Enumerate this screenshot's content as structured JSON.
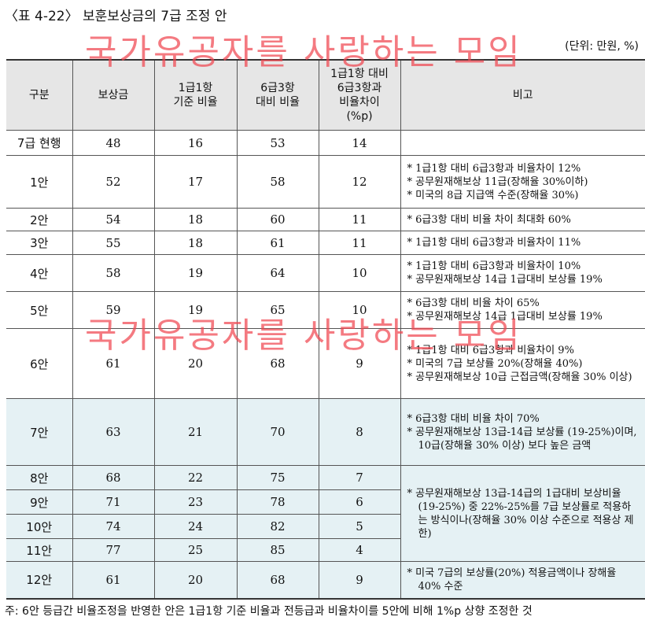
{
  "title": "〈표 4-22〉 보훈보상금의 7급 조정 안",
  "unit": "(단위: 만원, %)",
  "watermark": "국가유공자를 사랑하는 모임",
  "headers": [
    "구분",
    "보상금",
    "1급1항\n기준 비율",
    "6급3항\n대비 비율",
    "1급1항 대비\n6급3항과\n비율차이\n(%p)",
    "비고"
  ],
  "rows": [
    {
      "label": "7급 현행",
      "values": [
        "48",
        "16",
        "53",
        "14"
      ],
      "notes": [],
      "h": 32,
      "blue": false
    },
    {
      "label": "1안",
      "values": [
        "52",
        "17",
        "58",
        "12"
      ],
      "notes": [
        "* 1급1항 대비 6급3항과 비율차이 12%",
        "* 공무원재해보상 11급(장해율 30%이하)",
        "* 미국의 8급 지급액 수준(장해율 30%)"
      ],
      "h": 67,
      "blue": false
    },
    {
      "label": "2안",
      "values": [
        "54",
        "18",
        "60",
        "11"
      ],
      "notes": [
        "* 6급3항 대비 비율 차이 최대화 60%"
      ],
      "h": 29,
      "blue": false
    },
    {
      "label": "3안",
      "values": [
        "55",
        "18",
        "61",
        "11"
      ],
      "notes": [
        "* 1급1항 대비 6급3항과 비율차이 11%"
      ],
      "h": 30,
      "blue": false
    },
    {
      "label": "4안",
      "values": [
        "58",
        "19",
        "64",
        "10"
      ],
      "notes": [
        "* 1급1항 대비 6급3항과 비율차이 10%",
        "* 공무원재해보상 14급 1급대비 보상률 19%"
      ],
      "h": 47,
      "blue": false
    },
    {
      "label": "5안",
      "values": [
        "59",
        "19",
        "65",
        "10"
      ],
      "notes": [
        "* 6급3항 대비 비율 차이 65%",
        "* 공무원재해보상 14급 1급대비 보상률 19%"
      ],
      "h": 47,
      "blue": false
    },
    {
      "label": "6안",
      "values": [
        "61",
        "20",
        "68",
        "9"
      ],
      "notes": [
        "* 1급1항 대비 6급3항과 비율차이 9%",
        "* 미국의 7급 보상률 20%(장해율 40%)",
        "* 공무원재해보상 10급 근접금액(장해율 30% 이상)"
      ],
      "h": 89,
      "blue": false
    },
    {
      "label": "7안",
      "values": [
        "63",
        "21",
        "70",
        "8"
      ],
      "notes": [
        "* 6급3항 대비 비율 차이 70%",
        "* 공무원재해보상 13급-14급 보상률 (19-25%)이며, 10급(장해율 30% 이상) 보다 높은 금액"
      ],
      "h": 85,
      "blue": true
    },
    {
      "label": "8안",
      "values": [
        "68",
        "22",
        "75",
        "7"
      ],
      "notes": [
        "* 공무원재해보상 13급-14급의 1급대비 보상비율(19-25%) 중 22%-25%를 7급 보상률로 적용하는 방식이나(장해율 30% 이상 수준으로 적용상 제한)"
      ],
      "noteRowspan": 4,
      "h": 31,
      "blue": true
    },
    {
      "label": "9안",
      "values": [
        "71",
        "23",
        "78",
        "6"
      ],
      "h": 31,
      "blue": true
    },
    {
      "label": "10안",
      "values": [
        "74",
        "24",
        "82",
        "5"
      ],
      "h": 31,
      "blue": true
    },
    {
      "label": "11안",
      "values": [
        "77",
        "25",
        "85",
        "4"
      ],
      "h": 29,
      "blue": true
    },
    {
      "label": "12안",
      "values": [
        "61",
        "20",
        "68",
        "9"
      ],
      "notes": [
        "* 미국 7급의 보상률(20%) 적용금액이나 장해율 40% 수준"
      ],
      "h": 47,
      "blue": true
    }
  ],
  "footnote": "주: 6안 등급간 비율조정을 반영한 안은 1급1항 기준 비율과 전등급과 비율차이를 5안에 비해 1%p 상향 조정한 것"
}
